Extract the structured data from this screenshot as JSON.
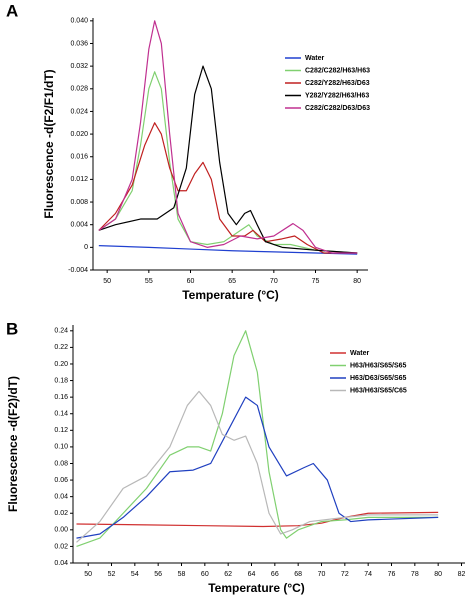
{
  "chart_data": [
    {
      "type": "line",
      "panel": "A",
      "x_label": "Temperature (°C)",
      "y_label": "Fluorescence -d(F2/F1/dT)",
      "xlim": [
        48.3,
        81.3
      ],
      "ylim": [
        -0.004,
        0.0405
      ],
      "xticks": [
        50,
        55,
        60,
        65,
        70,
        75,
        80
      ],
      "yticks": [
        -0.004,
        0,
        0.004,
        0.008,
        0.012,
        0.016,
        {
          "value": 0.02,
          "label": "0.020"
        },
        0.024,
        0.028,
        0.032,
        0.036,
        {
          "value": 0.04,
          "label": "0.040"
        }
      ],
      "legend": "upper right",
      "series": [
        {
          "name": "Water",
          "color": "#2040d0",
          "x": [
            49,
            55,
            60,
            65,
            70,
            75,
            80
          ],
          "values": [
            0.0003,
            0,
            -0.0003,
            -0.0006,
            -0.0008,
            -0.001,
            -0.0012
          ]
        },
        {
          "name": "C282/C282/H63/H63",
          "color": "#80d070",
          "x": [
            49,
            51,
            53,
            54,
            55,
            55.7,
            56.5,
            57.5,
            58.5,
            60,
            62,
            64,
            66,
            67,
            68,
            70,
            72,
            75,
            80
          ],
          "values": [
            0.003,
            0.005,
            0.01,
            0.018,
            0.028,
            0.031,
            0.028,
            0.015,
            0.005,
            0.001,
            0.0005,
            0.001,
            0.003,
            0.004,
            0.002,
            0.0005,
            0.0005,
            -0.0005,
            -0.001
          ]
        },
        {
          "name": "C282/Y282/H63/D63",
          "color": "#c02020",
          "x": [
            49,
            51,
            53,
            54.5,
            55.7,
            56.5,
            57.5,
            58.5,
            59.5,
            60.5,
            61.5,
            62.5,
            63.5,
            65,
            66.5,
            67.5,
            69,
            71,
            72.5,
            74,
            76,
            80
          ],
          "values": [
            0.003,
            0.006,
            0.011,
            0.018,
            0.022,
            0.02,
            0.014,
            0.01,
            0.01,
            0.013,
            0.015,
            0.012,
            0.005,
            0.002,
            0.002,
            0.003,
            0.001,
            0.0015,
            0.002,
            0.0005,
            -0.001,
            -0.001
          ]
        },
        {
          "name": "Y282/Y282/H63/H63",
          "color": "#000000",
          "x": [
            49,
            51,
            54,
            56,
            58,
            59.5,
            60.5,
            61.5,
            62.5,
            63.5,
            64.5,
            65.5,
            66.5,
            67.2,
            68,
            69,
            71,
            75,
            80
          ],
          "values": [
            0.003,
            0.004,
            0.005,
            0.005,
            0.007,
            0.014,
            0.027,
            0.032,
            0.028,
            0.015,
            0.006,
            0.004,
            0.006,
            0.0065,
            0.004,
            0.001,
            0,
            -0.0005,
            -0.001
          ]
        },
        {
          "name": "C282/C282/D63/D63",
          "color": "#c03090",
          "x": [
            49,
            51,
            53,
            54,
            55,
            55.7,
            56.5,
            57.5,
            58.5,
            60,
            62,
            64,
            66,
            68,
            70,
            72.3,
            73.5,
            75,
            77,
            80
          ],
          "values": [
            0.003,
            0.005,
            0.012,
            0.022,
            0.035,
            0.04,
            0.036,
            0.02,
            0.006,
            0.001,
            0,
            0.0005,
            0.002,
            0.0015,
            0.002,
            0.0042,
            0.003,
            0,
            -0.001,
            -0.001
          ]
        }
      ]
    },
    {
      "type": "line",
      "panel": "B",
      "x_label": "Temperature (°C)",
      "y_label": "Fluorescence -d(F2)/dT)",
      "xlim": [
        48.7,
        82.3
      ],
      "ylim": [
        -0.04,
        0.247
      ],
      "xticks": [
        50,
        52,
        54,
        56,
        58,
        60,
        62,
        64,
        66,
        68,
        70,
        72,
        74,
        76,
        78,
        80,
        82
      ],
      "yticks": [
        {
          "value": -0.04,
          "label": "0.04"
        },
        {
          "value": -0.02,
          "label": "0.02"
        },
        {
          "value": 0,
          "label": "0.00"
        },
        0.02,
        0.04,
        0.06,
        0.08,
        {
          "value": 0.1,
          "label": "0.10"
        },
        0.12,
        0.14,
        0.16,
        0.18,
        {
          "value": 0.2,
          "label": "0.20"
        },
        0.22,
        0.24
      ],
      "legend": "upper right",
      "series": [
        {
          "name": "Water",
          "color": "#d03030",
          "x": [
            49,
            55,
            60,
            65,
            68,
            70,
            72,
            74,
            80
          ],
          "values": [
            0.007,
            0.006,
            0.005,
            0.004,
            0.005,
            0.008,
            0.015,
            0.02,
            0.021
          ]
        },
        {
          "name": "H63/H63/S65/S65",
          "color": "#80d070",
          "x": [
            49,
            51,
            53,
            55,
            57,
            58.5,
            59.5,
            60.5,
            61.5,
            62.5,
            63.5,
            64.5,
            65.5,
            66.5,
            67,
            68,
            70,
            72,
            74,
            80
          ],
          "values": [
            -0.02,
            -0.01,
            0.02,
            0.05,
            0.09,
            0.1,
            0.1,
            0.095,
            0.14,
            0.21,
            0.24,
            0.19,
            0.07,
            0,
            -0.01,
            0,
            0.01,
            0.012,
            0.015,
            0.015
          ]
        },
        {
          "name": "H63/D63/S65/S65",
          "color": "#2040c0",
          "x": [
            49,
            51,
            53,
            55,
            57,
            59,
            60.5,
            62,
            63.5,
            64.5,
            65.5,
            67,
            68.5,
            69.3,
            70.5,
            71.5,
            72.5,
            74,
            80
          ],
          "values": [
            -0.01,
            -0.005,
            0.015,
            0.04,
            0.07,
            0.072,
            0.08,
            0.12,
            0.16,
            0.15,
            0.1,
            0.065,
            0.075,
            0.08,
            0.06,
            0.02,
            0.01,
            0.012,
            0.015
          ]
        },
        {
          "name": "H63/H63/S65/C65",
          "color": "#b8b8b8",
          "x": [
            49,
            51,
            53,
            55,
            57,
            58.5,
            59.5,
            60.5,
            61.5,
            62.5,
            63.5,
            64.5,
            65.5,
            66.5,
            67.5,
            69,
            72,
            74,
            80
          ],
          "values": [
            -0.015,
            0.01,
            0.05,
            0.065,
            0.1,
            0.15,
            0.167,
            0.15,
            0.115,
            0.108,
            0.113,
            0.08,
            0.02,
            -0.005,
            0,
            0.01,
            0.015,
            0.018,
            0.018
          ]
        }
      ]
    }
  ]
}
